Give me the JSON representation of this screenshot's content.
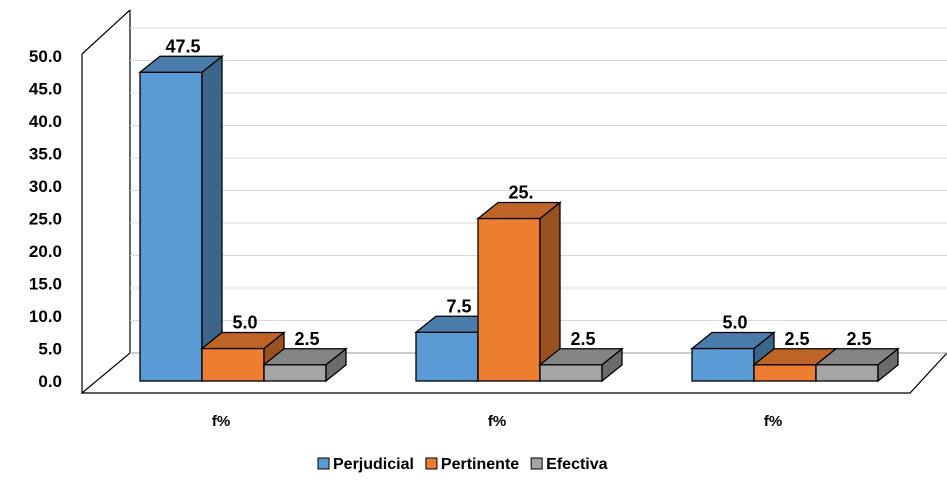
{
  "chart_data": {
    "type": "bar",
    "title": "",
    "xlabel": "",
    "ylabel": "",
    "ylim": [
      0,
      50
    ],
    "yticks": [
      "0.0",
      "5.0",
      "10.0",
      "15.0",
      "20.0",
      "25.0",
      "30.0",
      "35.0",
      "40.0",
      "45.0",
      "50.0"
    ],
    "categories": [
      "f%",
      "f%",
      "f%"
    ],
    "series": [
      {
        "name": "Perjudicial",
        "values": [
          47.5,
          7.5,
          5.0
        ],
        "labels": [
          "47.5",
          "7.5",
          "5.0"
        ],
        "color": "#5B9BD5"
      },
      {
        "name": "Pertinente",
        "values": [
          5.0,
          25.0,
          2.5
        ],
        "labels": [
          "5.0",
          "25.",
          "2.5"
        ],
        "color": "#ED7D31"
      },
      {
        "name": "Efectiva",
        "values": [
          2.5,
          2.5,
          2.5
        ],
        "labels": [
          "2.5",
          "2.5",
          "2.5"
        ],
        "color": "#A5A5A5"
      }
    ],
    "grid": true,
    "legend_position": "bottom",
    "style": "3d-clustered-column"
  }
}
